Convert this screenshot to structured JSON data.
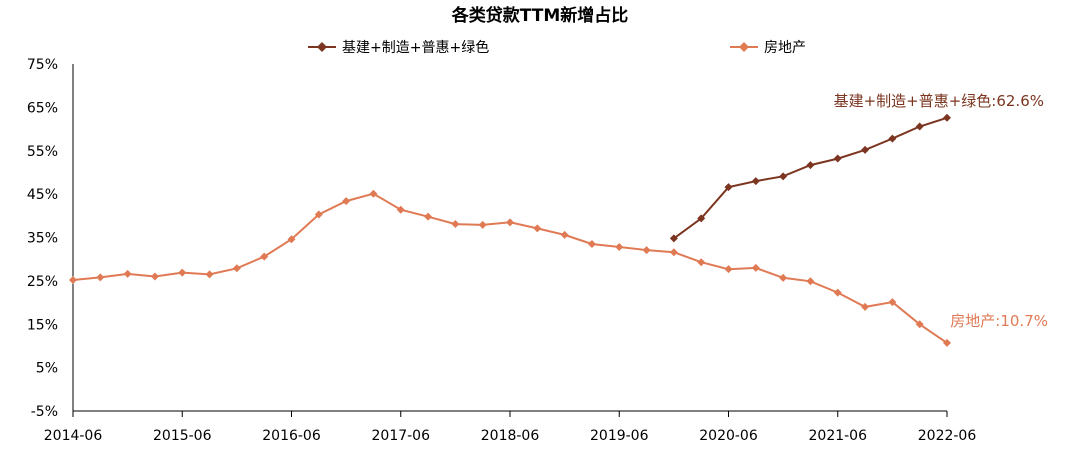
{
  "chart_data": {
    "type": "line",
    "title": "各类贷款TTM新增占比",
    "xlabel": "",
    "ylabel": "",
    "ylim": [
      -5,
      75
    ],
    "y_ticks": [
      "75%",
      "65%",
      "55%",
      "45%",
      "35%",
      "25%",
      "15%",
      "5%",
      "-5%"
    ],
    "x_ticks": [
      "2014-06",
      "2015-06",
      "2016-06",
      "2017-06",
      "2018-06",
      "2019-06",
      "2020-06",
      "2021-06",
      "2022-06"
    ],
    "x": [
      "2014-06",
      "2014-09",
      "2014-12",
      "2015-03",
      "2015-06",
      "2015-09",
      "2015-12",
      "2016-03",
      "2016-06",
      "2016-09",
      "2016-12",
      "2017-03",
      "2017-06",
      "2017-09",
      "2017-12",
      "2018-03",
      "2018-06",
      "2018-09",
      "2018-12",
      "2019-03",
      "2019-06",
      "2019-09",
      "2019-12",
      "2020-03",
      "2020-06",
      "2020-09",
      "2020-12",
      "2021-03",
      "2021-06",
      "2021-09",
      "2021-12",
      "2022-03",
      "2022-06"
    ],
    "legend_position": "top",
    "series": [
      {
        "name": "基建+制造+普惠+绿色",
        "color": "#7b3520",
        "marker": "diamond",
        "values": [
          null,
          null,
          null,
          null,
          null,
          null,
          null,
          null,
          null,
          null,
          null,
          null,
          null,
          null,
          null,
          null,
          null,
          null,
          null,
          null,
          null,
          null,
          34.8,
          39.4,
          46.6,
          48.0,
          49.1,
          51.7,
          53.2,
          55.2,
          57.8,
          60.6,
          62.6
        ]
      },
      {
        "name": "房地产",
        "color": "#e07a55",
        "marker": "diamond",
        "values": [
          25.2,
          25.8,
          26.6,
          26.0,
          26.9,
          26.5,
          27.9,
          30.6,
          34.6,
          40.3,
          43.4,
          45.1,
          41.4,
          39.8,
          38.1,
          37.9,
          38.5,
          37.1,
          35.6,
          33.5,
          32.8,
          32.1,
          31.6,
          29.3,
          27.7,
          28.0,
          25.7,
          24.9,
          22.3,
          19.0,
          20.1,
          15.0,
          10.7
        ]
      }
    ],
    "annotations": [
      {
        "text": "基建+制造+普惠+绿色:62.6%",
        "color": "#7b3520"
      },
      {
        "text": "房地产:10.7%",
        "color": "#e07a55"
      }
    ]
  }
}
